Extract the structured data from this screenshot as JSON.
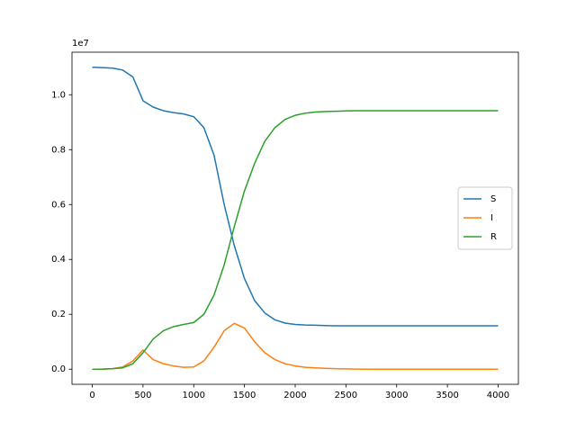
{
  "chart_data": {
    "type": "line",
    "offset_text": "1e7",
    "x": [
      0,
      100,
      200,
      300,
      400,
      500,
      600,
      700,
      800,
      900,
      1000,
      1100,
      1200,
      1300,
      1400,
      1500,
      1600,
      1700,
      1800,
      1900,
      2000,
      2100,
      2200,
      2300,
      2400,
      2500,
      2600,
      2700,
      2800,
      2900,
      3000,
      3100,
      3200,
      3300,
      3400,
      3500,
      3600,
      3700,
      3800,
      3900,
      4000
    ],
    "series": [
      {
        "name": "S",
        "color": "#1f77b4",
        "values": [
          1.1,
          1.099,
          1.097,
          1.09,
          1.065,
          0.978,
          0.955,
          0.942,
          0.935,
          0.93,
          0.92,
          0.88,
          0.78,
          0.6,
          0.45,
          0.33,
          0.25,
          0.205,
          0.18,
          0.168,
          0.163,
          0.161,
          0.16,
          0.159,
          0.158,
          0.158,
          0.158,
          0.158,
          0.158,
          0.158,
          0.158,
          0.158,
          0.158,
          0.158,
          0.158,
          0.158,
          0.158,
          0.158,
          0.158,
          0.158,
          0.158
        ]
      },
      {
        "name": "I",
        "color": "#ff7f0e",
        "values": [
          0,
          0.0005,
          0.002,
          0.008,
          0.03,
          0.07,
          0.035,
          0.02,
          0.012,
          0.007,
          0.008,
          0.03,
          0.08,
          0.14,
          0.167,
          0.15,
          0.1,
          0.06,
          0.035,
          0.02,
          0.012,
          0.007,
          0.005,
          0.003,
          0.002,
          0.001,
          0.0005,
          0,
          0,
          0,
          0,
          0,
          0,
          0,
          0,
          0,
          0,
          0,
          0,
          0,
          0
        ]
      },
      {
        "name": "R",
        "color": "#2ca02c",
        "values": [
          0,
          0.0005,
          0.002,
          0.005,
          0.02,
          0.06,
          0.11,
          0.14,
          0.155,
          0.163,
          0.17,
          0.2,
          0.27,
          0.38,
          0.52,
          0.65,
          0.75,
          0.83,
          0.88,
          0.91,
          0.925,
          0.933,
          0.937,
          0.939,
          0.94,
          0.941,
          0.942,
          0.942,
          0.942,
          0.942,
          0.942,
          0.942,
          0.942,
          0.942,
          0.942,
          0.942,
          0.942,
          0.942,
          0.942,
          0.942,
          0.942
        ]
      }
    ],
    "xlim": [
      -200,
      4200
    ],
    "ylim": [
      -0.055,
      1.155
    ],
    "xticks": [
      0,
      500,
      1000,
      1500,
      2000,
      2500,
      3000,
      3500,
      4000
    ],
    "yticks": [
      {
        "value": 0,
        "label": "0.0"
      },
      0.2,
      0.4,
      0.6,
      0.8,
      {
        "value": 1,
        "label": "1.0"
      }
    ],
    "grid": false,
    "legend": "center right"
  }
}
